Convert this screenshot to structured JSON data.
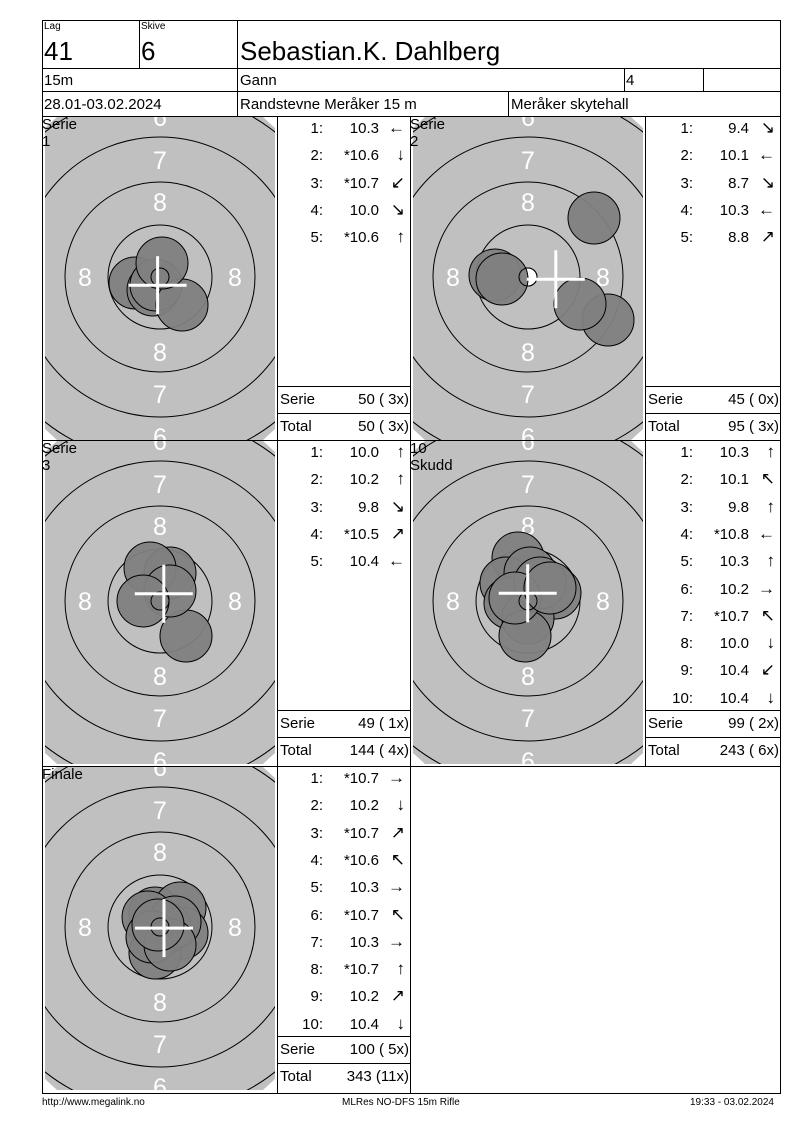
{
  "header": {
    "lag_label": "Lag",
    "lag": "41",
    "skive_label": "Skive",
    "skive": "6",
    "name": "Sebastian.K. Dahlberg",
    "distance": "15m",
    "stage": "Gann",
    "round": "4",
    "dates": "28.01-03.02.2024",
    "event": "Randstevne Meråker 15 m",
    "venue": "Meråker skytehall"
  },
  "colors": {
    "target": "#c0c0c0",
    "shot": "#808080",
    "rings": "#000000",
    "numbers": "#ffffff"
  },
  "labels": {
    "serie": "Serie",
    "total": "Total"
  },
  "ring_numbers": [
    "8",
    "7",
    "6"
  ],
  "panels": [
    {
      "title": "Serie 1",
      "shots": [
        {
          "n": "1:",
          "v": "10.3",
          "dir": "left"
        },
        {
          "n": "2:",
          "v": "*10.6",
          "dir": "down"
        },
        {
          "n": "3:",
          "v": "*10.7",
          "dir": "down-left"
        },
        {
          "n": "4:",
          "v": "10.0",
          "dir": "down-right"
        },
        {
          "n": "5:",
          "v": "*10.6",
          "dir": "up"
        }
      ],
      "serie": "50 ( 3x)",
      "total": "50 ( 3x)"
    },
    {
      "title": "Serie 2",
      "shots": [
        {
          "n": "1:",
          "v": "9.4",
          "dir": "down-right"
        },
        {
          "n": "2:",
          "v": "10.1",
          "dir": "left"
        },
        {
          "n": "3:",
          "v": "8.7",
          "dir": "down-right"
        },
        {
          "n": "4:",
          "v": "10.3",
          "dir": "left"
        },
        {
          "n": "5:",
          "v": "8.8",
          "dir": "up-right"
        }
      ],
      "serie": "45 ( 0x)",
      "total": "95 ( 3x)"
    },
    {
      "title": "Serie 3",
      "shots": [
        {
          "n": "1:",
          "v": "10.0",
          "dir": "up"
        },
        {
          "n": "2:",
          "v": "10.2",
          "dir": "up"
        },
        {
          "n": "3:",
          "v": "9.8",
          "dir": "down-right"
        },
        {
          "n": "4:",
          "v": "*10.5",
          "dir": "up-right"
        },
        {
          "n": "5:",
          "v": "10.4",
          "dir": "left"
        }
      ],
      "serie": "49 ( 1x)",
      "total": "144 ( 4x)"
    },
    {
      "title": "10 Skudd",
      "shots": [
        {
          "n": "1:",
          "v": "10.3",
          "dir": "up"
        },
        {
          "n": "2:",
          "v": "10.1",
          "dir": "up-left"
        },
        {
          "n": "3:",
          "v": "9.8",
          "dir": "up"
        },
        {
          "n": "4:",
          "v": "*10.8",
          "dir": "left"
        },
        {
          "n": "5:",
          "v": "10.3",
          "dir": "up"
        },
        {
          "n": "6:",
          "v": "10.2",
          "dir": "right"
        },
        {
          "n": "7:",
          "v": "*10.7",
          "dir": "up-left"
        },
        {
          "n": "8:",
          "v": "10.0",
          "dir": "down"
        },
        {
          "n": "9:",
          "v": "10.4",
          "dir": "down-left"
        },
        {
          "n": "10:",
          "v": "10.4",
          "dir": "down"
        }
      ],
      "serie": "99 ( 2x)",
      "total": "243 ( 6x)"
    },
    {
      "title": "Finale",
      "shots": [
        {
          "n": "1:",
          "v": "*10.7",
          "dir": "right"
        },
        {
          "n": "2:",
          "v": "10.2",
          "dir": "down"
        },
        {
          "n": "3:",
          "v": "*10.7",
          "dir": "up-right"
        },
        {
          "n": "4:",
          "v": "*10.6",
          "dir": "up-left"
        },
        {
          "n": "5:",
          "v": "10.3",
          "dir": "right"
        },
        {
          "n": "6:",
          "v": "*10.7",
          "dir": "up-left"
        },
        {
          "n": "7:",
          "v": "10.3",
          "dir": "right"
        },
        {
          "n": "8:",
          "v": "*10.7",
          "dir": "up"
        },
        {
          "n": "9:",
          "v": "10.2",
          "dir": "up-right"
        },
        {
          "n": "10:",
          "v": "10.4",
          "dir": "down"
        }
      ],
      "serie": "100 ( 5x)",
      "total": "343 (11x)"
    }
  ],
  "footer": {
    "left": "http://www.megalink.no",
    "center": "MLRes NO-DFS 15m Rifle",
    "right": "19:33 - 03.02.2024"
  }
}
